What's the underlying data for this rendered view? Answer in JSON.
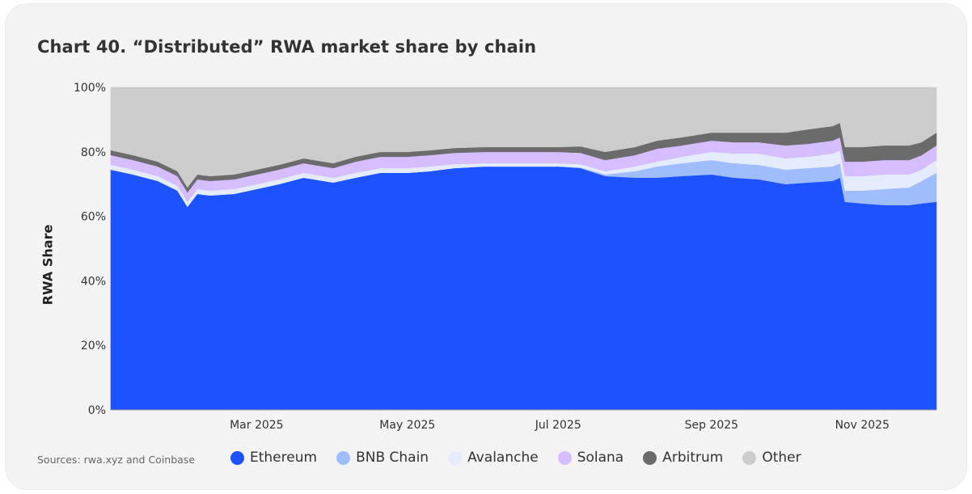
{
  "title": "Chart 40.  “Distributed” RWA market share by chain",
  "source": "Sources: rwa.xyz and Coinbase",
  "chart_data": {
    "type": "area",
    "stacked": true,
    "ylabel": "RWA Share",
    "xlabel": "",
    "ylim": [
      0,
      100
    ],
    "y_ticks": [
      "0%",
      "20%",
      "40%",
      "60%",
      "80%",
      "100%"
    ],
    "x_range": [
      "2025-01-01",
      "2025-12-01"
    ],
    "x_ticks": [
      {
        "date": "2025-03-01",
        "label": "Mar 2025"
      },
      {
        "date": "2025-05-01",
        "label": "May 2025"
      },
      {
        "date": "2025-07-01",
        "label": "Jul 2025"
      },
      {
        "date": "2025-09-01",
        "label": "Sep 2025"
      },
      {
        "date": "2025-11-01",
        "label": "Nov 2025"
      }
    ],
    "x": [
      "2025-01-01",
      "2025-01-10",
      "2025-01-20",
      "2025-01-28",
      "2025-02-01",
      "2025-02-05",
      "2025-02-10",
      "2025-02-20",
      "2025-03-01",
      "2025-03-10",
      "2025-03-20",
      "2025-04-01",
      "2025-04-10",
      "2025-04-20",
      "2025-05-01",
      "2025-05-10",
      "2025-05-20",
      "2025-06-01",
      "2025-06-10",
      "2025-06-20",
      "2025-07-01",
      "2025-07-10",
      "2025-07-20",
      "2025-08-01",
      "2025-08-10",
      "2025-08-20",
      "2025-09-01",
      "2025-09-10",
      "2025-09-20",
      "2025-10-01",
      "2025-10-10",
      "2025-10-20",
      "2025-10-23",
      "2025-10-25",
      "2025-11-01",
      "2025-11-10",
      "2025-11-20",
      "2025-11-25",
      "2025-12-01"
    ],
    "series": [
      {
        "name": "Ethereum",
        "color": "#1c52ff",
        "values": [
          74.5,
          73,
          71,
          68,
          63,
          67,
          66.5,
          67,
          68.5,
          70,
          72,
          70.5,
          72,
          73.5,
          73.5,
          74,
          75,
          75.5,
          75.5,
          75.5,
          75.5,
          75,
          72.5,
          72,
          72,
          72.5,
          73,
          72,
          71.5,
          70,
          70.5,
          71,
          72,
          64.5,
          64,
          63.5,
          63.5,
          64,
          64.5
        ]
      },
      {
        "name": "BNB Chain",
        "color": "#a0bdfb",
        "values": [
          0,
          0,
          0,
          0,
          0,
          0,
          0,
          0,
          0,
          0,
          0,
          0,
          0,
          0,
          0,
          0,
          0,
          0,
          0,
          0,
          0,
          0.2,
          0.5,
          2,
          3.5,
          4,
          4.5,
          4.5,
          4.5,
          4.5,
          4.5,
          4.5,
          4.5,
          3.5,
          4,
          5,
          5.5,
          7,
          9
        ]
      },
      {
        "name": "Avalanche",
        "color": "#e4ebfb",
        "values": [
          1.5,
          1.5,
          1.5,
          1.5,
          1.5,
          1.5,
          1.5,
          1.5,
          1.5,
          1.5,
          1.5,
          1.5,
          1.5,
          1.5,
          1.5,
          1.5,
          1.2,
          1,
          1,
          1,
          1,
          1,
          1,
          1.5,
          1.5,
          2,
          2.5,
          3,
          3.5,
          3.5,
          3.5,
          4,
          4,
          4.5,
          4.5,
          4.5,
          4,
          3.5,
          4
        ]
      },
      {
        "name": "Solana",
        "color": "#d6bdfd",
        "values": [
          3,
          3,
          3,
          3,
          3,
          3,
          3,
          3,
          3,
          3,
          3,
          3,
          3.5,
          3.5,
          3.5,
          3.5,
          3.5,
          3.5,
          3.5,
          3.5,
          3.5,
          3.5,
          3.5,
          3.5,
          4,
          3.5,
          3.5,
          3.5,
          3.5,
          4,
          4,
          4,
          4,
          4.5,
          4.5,
          4.5,
          4.5,
          4.5,
          4.5
        ]
      },
      {
        "name": "Arbitrum",
        "color": "#6b6b6b",
        "values": [
          1.5,
          1.5,
          1.5,
          1.5,
          1.5,
          1.5,
          1.5,
          1.5,
          1.5,
          1.5,
          1.5,
          1.5,
          1.5,
          1.5,
          1.5,
          1.5,
          1.5,
          1.5,
          1.5,
          1.5,
          1.5,
          2,
          2.5,
          2.5,
          2.5,
          2.5,
          2.5,
          3,
          3,
          4,
          4.5,
          4.5,
          4.5,
          4.5,
          4.5,
          4.5,
          4.5,
          4,
          4
        ]
      },
      {
        "name": "Other",
        "color": "#cccccc",
        "values": [
          19.5,
          21,
          23,
          26,
          31,
          27,
          27.5,
          27,
          25.5,
          24,
          22,
          23.5,
          21.5,
          20,
          20,
          19.5,
          18.8,
          18.5,
          18.5,
          18.5,
          18.5,
          18.3,
          20,
          18.5,
          16.5,
          15.5,
          14,
          14,
          14,
          14,
          13,
          12,
          11,
          18.5,
          18.5,
          18,
          18,
          17,
          14
        ]
      }
    ]
  }
}
